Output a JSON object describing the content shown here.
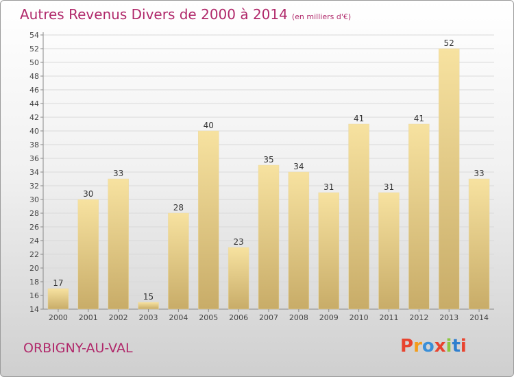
{
  "header": {
    "title": "Autres Revenus Divers de 2000 à 2014",
    "unit": "(en milliers d'€)"
  },
  "footer": {
    "town": "ORBIGNY-AU-VAL",
    "logo": "Proxiti"
  },
  "colors": {
    "title": "#b0286a",
    "bar_light": "#f7e2a0",
    "bar_dark": "#c8ac68",
    "logo": [
      "#e8432e",
      "#f39c1a",
      "#3a8fd8",
      "#e8432e",
      "#8cc63f",
      "#2f7fcf",
      "#e8432e"
    ]
  },
  "chart_data": {
    "type": "bar",
    "categories": [
      "2000",
      "2001",
      "2002",
      "2003",
      "2004",
      "2005",
      "2006",
      "2007",
      "2008",
      "2009",
      "2010",
      "2011",
      "2012",
      "2013",
      "2014"
    ],
    "values": [
      17,
      30,
      33,
      15,
      28,
      40,
      23,
      35,
      34,
      31,
      41,
      31,
      41,
      52,
      33
    ],
    "ylim": [
      14,
      54
    ],
    "yticks": [
      14,
      16,
      18,
      20,
      22,
      24,
      26,
      28,
      30,
      32,
      34,
      36,
      38,
      40,
      42,
      44,
      46,
      48,
      50,
      52,
      54
    ],
    "grid": true
  }
}
